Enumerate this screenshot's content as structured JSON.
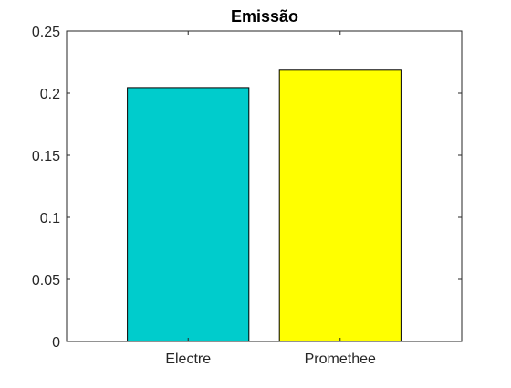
{
  "chart_data": {
    "type": "bar",
    "title": "Emissão",
    "xlabel": "",
    "ylabel": "",
    "categories": [
      "Electre",
      "Promethee"
    ],
    "values": [
      0.2045,
      0.2185
    ],
    "colors": [
      "#00CCCC",
      "#FFFF00"
    ],
    "ylim": [
      0,
      0.25
    ],
    "yticks": [
      0,
      0.05,
      0.1,
      0.15,
      0.2,
      0.25
    ],
    "ytick_labels": [
      "0",
      "0.05",
      "0.1",
      "0.15",
      "0.2",
      "0.25"
    ],
    "grid": false,
    "legend": "none"
  }
}
